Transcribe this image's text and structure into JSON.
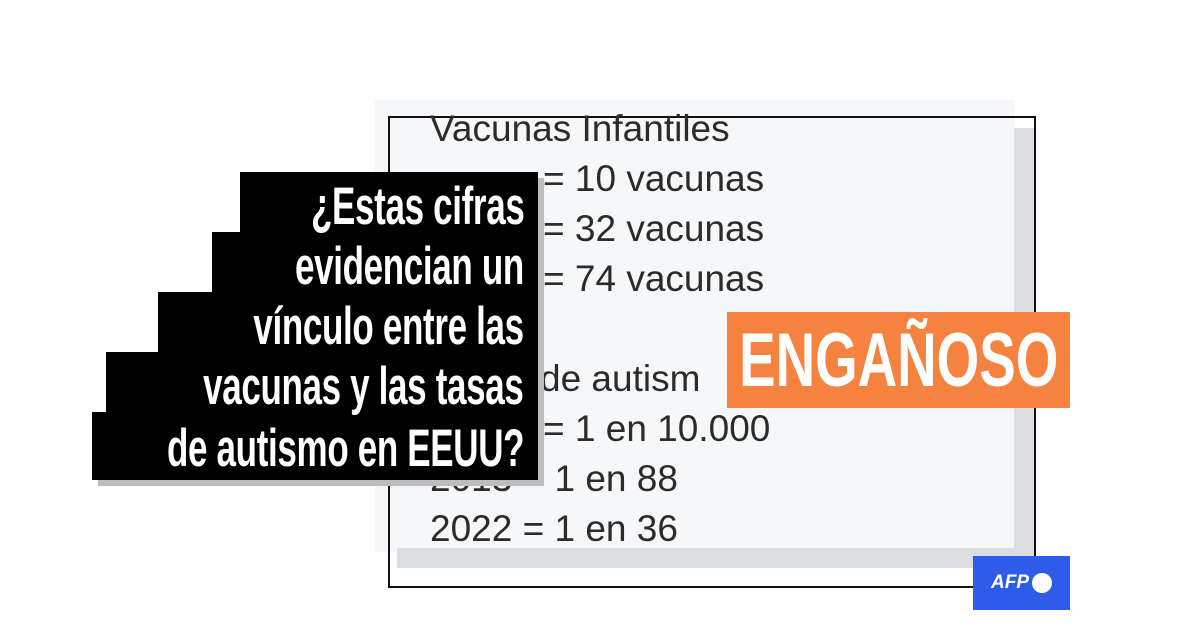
{
  "post": {
    "title": "Vacunas Infantiles",
    "lines": [
      "= 10 vacunas",
      "= 32 vacunas",
      "= 74 vacunas",
      "de autism",
      "= 1 en 10.000",
      "2013 = 1 en 88",
      "2022 = 1 en 36"
    ]
  },
  "question": {
    "lines": [
      "¿Estas cifras",
      "evidencian un",
      "vínculo entre las",
      "vacunas y las tasas",
      "de autismo en EEUU?"
    ]
  },
  "verdict": {
    "label": "ENGAÑOSO",
    "color": "#f5823f"
  },
  "logo": {
    "text": "AFP",
    "color": "#2f5bea"
  }
}
